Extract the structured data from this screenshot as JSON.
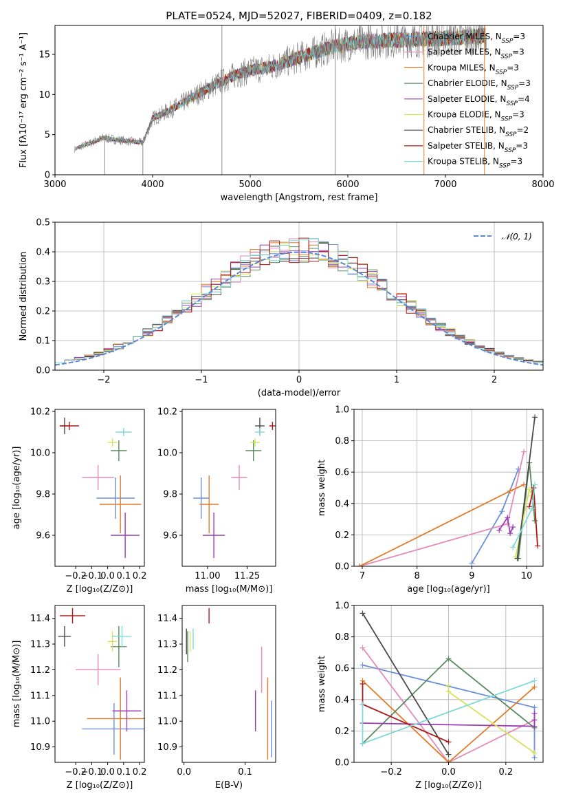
{
  "chart_data": [
    {
      "type": "line",
      "title": "PLATE=0524, MJD=52027, FIBERID=0409, z=0.182",
      "xlabel": "wavelength [Angstrom, rest frame]",
      "ylabel": "Flux [fλ10⁻¹⁷ erg cm⁻² s⁻¹ A⁻¹]",
      "xlim": [
        3000,
        8000
      ],
      "ylim": [
        0,
        18.6
      ],
      "xticks": [
        3000,
        4000,
        5000,
        6000,
        7000,
        8000
      ],
      "yticks": [
        0,
        5,
        10,
        15
      ],
      "legend_position": "right",
      "legend": [
        {
          "name": "Chabrier MILES, N",
          "sub": "SSP",
          "tail": "=3",
          "color": "#6b8fd9"
        },
        {
          "name": "Salpeter MILES, N",
          "sub": "SSP",
          "tail": "=3",
          "color": "#e48ab8"
        },
        {
          "name": "Kroupa MILES, N",
          "sub": "SSP",
          "tail": "=3",
          "color": "#e07b28"
        },
        {
          "name": "Chabrier ELODIE, N",
          "sub": "SSP",
          "tail": "=3",
          "color": "#5a8a60"
        },
        {
          "name": "Salpeter ELODIE, N",
          "sub": "SSP",
          "tail": "=4",
          "color": "#9c3db5"
        },
        {
          "name": "Kroupa ELODIE, N",
          "sub": "SSP",
          "tail": "=3",
          "color": "#d4e35c"
        },
        {
          "name": "Chabrier STELIB, N",
          "sub": "SSP",
          "tail": "=2",
          "color": "#4a4a4a"
        },
        {
          "name": "Salpeter STELIB, N",
          "sub": "SSP",
          "tail": "=3",
          "color": "#b01818"
        },
        {
          "name": "Kroupa STELIB, N",
          "sub": "SSP",
          "tail": "=3",
          "color": "#7fd8d8"
        }
      ],
      "continuum": {
        "x": [
          3200,
          3500,
          3600,
          3900,
          4000,
          4200,
          4500,
          4800,
          5000,
          5200,
          5500,
          5800,
          6000,
          6200,
          6500,
          6800,
          7000,
          7300,
          7420
        ],
        "y": [
          3.2,
          4.6,
          4.4,
          4.0,
          7.0,
          8.2,
          10.3,
          12.2,
          13.0,
          13.4,
          14.6,
          15.8,
          16.3,
          16.6,
          16.8,
          16.9,
          17.0,
          17.2,
          17.3
        ]
      },
      "observed_range": [
        3200,
        7420
      ],
      "observed_color": "#808080"
    },
    {
      "type": "bar",
      "xlabel": "(data-model)/error",
      "ylabel": "Normed distribution",
      "xlim": [
        -2.5,
        2.5
      ],
      "ylim": [
        0,
        0.5
      ],
      "xticks": [
        -2,
        -1,
        0,
        1,
        2
      ],
      "yticks": [
        0.0,
        0.1,
        0.2,
        0.3,
        0.4,
        0.5
      ],
      "grid": true,
      "legend": "𝒩(0, 1)",
      "legend_position": "top-right",
      "normal_color": "#5b86d6",
      "bin_width": 0.1,
      "x_start": -2.5
    },
    {
      "type": "scatter",
      "xlabel": "Z [log₁₀(Z/Z⊙)]",
      "ylabel": "age  [log₁₀(age/yr)]",
      "xlim": [
        -0.33,
        0.23
      ],
      "ylim": [
        9.45,
        10.21
      ],
      "xticks": [
        -0.2,
        -0.1,
        0.0,
        0.1,
        0.2
      ],
      "yticks": [
        9.6,
        9.8,
        10.0,
        10.2
      ],
      "points": [
        {
          "x": 0.05,
          "y": 9.78,
          "xerr": 0.12,
          "yerr": 0.1,
          "color": "#6b8fd9"
        },
        {
          "x": -0.06,
          "y": 9.88,
          "xerr": 0.1,
          "yerr": 0.06,
          "color": "#e48ab8"
        },
        {
          "x": 0.08,
          "y": 9.75,
          "xerr": 0.13,
          "yerr": 0.14,
          "color": "#e07b28"
        },
        {
          "x": 0.07,
          "y": 10.01,
          "xerr": 0.05,
          "yerr": 0.05,
          "color": "#5a8a60"
        },
        {
          "x": 0.11,
          "y": 9.6,
          "xerr": 0.09,
          "yerr": 0.11,
          "color": "#9c3db5"
        },
        {
          "x": 0.03,
          "y": 10.05,
          "xerr": 0.03,
          "yerr": 0.02,
          "color": "#d4e35c"
        },
        {
          "x": -0.27,
          "y": 10.13,
          "xerr": 0.03,
          "yerr": 0.04,
          "color": "#4a4a4a"
        },
        {
          "x": -0.24,
          "y": 10.13,
          "xerr": 0.06,
          "yerr": 0.02,
          "color": "#b01818"
        },
        {
          "x": 0.1,
          "y": 10.1,
          "xerr": 0.05,
          "yerr": 0.02,
          "color": "#7fd8d8"
        }
      ]
    },
    {
      "type": "scatter",
      "xlabel": "mass [log₁₀(M/M⊙)]",
      "xlim": [
        10.84,
        11.43
      ],
      "ylim": [
        9.45,
        10.21
      ],
      "xticks": [
        11.0,
        11.25
      ],
      "tick_labels": [
        "11.00",
        "11.25"
      ],
      "yticks": [
        9.6,
        9.8,
        10.0,
        10.2
      ],
      "points": [
        {
          "x": 10.96,
          "y": 9.78,
          "xerr": 0.05,
          "yerr": 0.1,
          "color": "#6b8fd9"
        },
        {
          "x": 11.2,
          "y": 9.88,
          "xerr": 0.05,
          "yerr": 0.06,
          "color": "#e48ab8"
        },
        {
          "x": 11.01,
          "y": 9.75,
          "xerr": 0.06,
          "yerr": 0.14,
          "color": "#e07b28"
        },
        {
          "x": 11.29,
          "y": 10.01,
          "xerr": 0.05,
          "yerr": 0.05,
          "color": "#5a8a60"
        },
        {
          "x": 11.04,
          "y": 9.6,
          "xerr": 0.07,
          "yerr": 0.11,
          "color": "#9c3db5"
        },
        {
          "x": 11.3,
          "y": 10.05,
          "xerr": 0.03,
          "yerr": 0.02,
          "color": "#d4e35c"
        },
        {
          "x": 11.33,
          "y": 10.13,
          "xerr": 0.03,
          "yerr": 0.04,
          "color": "#4a4a4a"
        },
        {
          "x": 11.41,
          "y": 10.13,
          "xerr": 0.02,
          "yerr": 0.02,
          "color": "#b01818"
        },
        {
          "x": 11.33,
          "y": 10.1,
          "xerr": 0.03,
          "yerr": 0.02,
          "color": "#7fd8d8"
        }
      ]
    },
    {
      "type": "line",
      "xlabel": "age  [log₁₀(age/yr)]",
      "ylabel": "mass weight",
      "xlim": [
        6.85,
        10.3
      ],
      "ylim": [
        0,
        1
      ],
      "xticks": [
        7,
        8,
        9,
        10
      ],
      "yticks": [
        0.0,
        0.2,
        0.4,
        0.6,
        0.8,
        1.0
      ],
      "grid": true,
      "series": [
        {
          "color": "#6b8fd9",
          "x": [
            9.0,
            9.55,
            9.85
          ],
          "y": [
            0.02,
            0.35,
            0.62
          ]
        },
        {
          "color": "#e48ab8",
          "x": [
            6.95,
            9.65,
            9.95
          ],
          "y": [
            0.0,
            0.27,
            0.73
          ]
        },
        {
          "color": "#e07b28",
          "x": [
            6.95,
            9.7,
            9.95
          ],
          "y": [
            0.0,
            0.48,
            0.52
          ]
        },
        {
          "color": "#5a8a60",
          "x": [
            9.85,
            10.05,
            10.15
          ],
          "y": [
            0.05,
            0.66,
            0.29
          ]
        },
        {
          "color": "#9c3db5",
          "x": [
            9.5,
            9.65,
            9.7,
            9.75
          ],
          "y": [
            0.23,
            0.31,
            0.21,
            0.25
          ]
        },
        {
          "color": "#d4e35c",
          "x": [
            9.8,
            10.05,
            10.1
          ],
          "y": [
            0.06,
            0.49,
            0.45
          ]
        },
        {
          "color": "#4a4a4a",
          "x": [
            9.83,
            10.15
          ],
          "y": [
            0.05,
            0.95
          ]
        },
        {
          "color": "#b01818",
          "x": [
            10.05,
            10.13,
            10.2
          ],
          "y": [
            0.38,
            0.5,
            0.13
          ]
        },
        {
          "color": "#7fd8d8",
          "x": [
            9.75,
            10.1,
            10.15
          ],
          "y": [
            0.12,
            0.37,
            0.52
          ]
        }
      ]
    },
    {
      "type": "scatter",
      "xlabel": "Z [log₁₀(Z/Z⊙)]",
      "ylabel": "mass [log₁₀(M/M⊙)]",
      "xlim": [
        -0.33,
        0.23
      ],
      "ylim": [
        10.84,
        11.45
      ],
      "xticks": [
        -0.2,
        -0.1,
        0.0,
        0.1,
        0.2
      ],
      "yticks": [
        10.9,
        11.0,
        11.1,
        11.2,
        11.3,
        11.4
      ],
      "points": [
        {
          "x": 0.04,
          "y": 10.97,
          "xerr": 0.2,
          "yerr": 0.1,
          "color": "#6b8fd9"
        },
        {
          "x": -0.06,
          "y": 11.2,
          "xerr": 0.14,
          "yerr": 0.06,
          "color": "#e48ab8"
        },
        {
          "x": 0.08,
          "y": 11.01,
          "xerr": 0.21,
          "yerr": 0.16,
          "color": "#e07b28"
        },
        {
          "x": 0.07,
          "y": 11.29,
          "xerr": 0.05,
          "yerr": 0.08,
          "color": "#5a8a60"
        },
        {
          "x": 0.12,
          "y": 11.04,
          "xerr": 0.09,
          "yerr": 0.08,
          "color": "#9c3db5"
        },
        {
          "x": 0.03,
          "y": 11.31,
          "xerr": 0.03,
          "yerr": 0.04,
          "color": "#d4e35c"
        },
        {
          "x": -0.27,
          "y": 11.33,
          "xerr": 0.04,
          "yerr": 0.04,
          "color": "#4a4a4a"
        },
        {
          "x": -0.22,
          "y": 11.41,
          "xerr": 0.08,
          "yerr": 0.03,
          "color": "#b01818"
        },
        {
          "x": 0.09,
          "y": 11.33,
          "xerr": 0.06,
          "yerr": 0.04,
          "color": "#7fd8d8"
        }
      ]
    },
    {
      "type": "scatter",
      "xlabel": "E(B-V)",
      "xlim": [
        -0.003,
        0.15
      ],
      "ylim": [
        10.84,
        11.45
      ],
      "xticks": [
        0.0,
        0.1
      ],
      "yticks": [
        10.9,
        11.0,
        11.1,
        11.2,
        11.3,
        11.4
      ],
      "points": [
        {
          "x": 0.143,
          "y": 10.97,
          "yerr": 0.11,
          "color": "#6b8fd9"
        },
        {
          "x": 0.127,
          "y": 11.2,
          "yerr": 0.09,
          "color": "#e48ab8"
        },
        {
          "x": 0.137,
          "y": 11.01,
          "yerr": 0.16,
          "color": "#e07b28"
        },
        {
          "x": 0.006,
          "y": 11.29,
          "yerr": 0.06,
          "color": "#5a8a60"
        },
        {
          "x": 0.117,
          "y": 11.04,
          "yerr": 0.08,
          "color": "#9c3db5"
        },
        {
          "x": 0.01,
          "y": 11.31,
          "yerr": 0.04,
          "color": "#d4e35c"
        },
        {
          "x": 0.004,
          "y": 11.31,
          "yerr": 0.05,
          "color": "#4a4a4a"
        },
        {
          "x": 0.041,
          "y": 11.41,
          "yerr": 0.03,
          "color": "#b01818"
        },
        {
          "x": 0.015,
          "y": 11.32,
          "yerr": 0.04,
          "color": "#7fd8d8"
        }
      ]
    },
    {
      "type": "line",
      "xlabel": "Z [log₁₀(Z/Z⊙)]",
      "ylabel": "mass weight",
      "xlim": [
        -0.33,
        0.33
      ],
      "ylim": [
        0,
        1
      ],
      "xticks": [
        -0.2,
        0.0,
        0.2
      ],
      "yticks": [
        0.0,
        0.2,
        0.4,
        0.6,
        0.8,
        1.0
      ],
      "grid": true,
      "series": [
        {
          "color": "#6b8fd9",
          "x": [
            -0.3,
            0.3,
            0.3
          ],
          "y": [
            0.62,
            0.35,
            0.03
          ]
        },
        {
          "color": "#e48ab8",
          "x": [
            -0.3,
            0.0,
            0.3
          ],
          "y": [
            0.73,
            0.0,
            0.27
          ]
        },
        {
          "color": "#e07b28",
          "x": [
            -0.3,
            0.0,
            0.3
          ],
          "y": [
            0.52,
            0.0,
            0.48
          ]
        },
        {
          "color": "#5a8a60",
          "x": [
            -0.3,
            0.0,
            0.3
          ],
          "y": [
            0.12,
            0.66,
            0.22
          ]
        },
        {
          "color": "#9c3db5",
          "x": [
            -0.3,
            0.3,
            0.3,
            0.3
          ],
          "y": [
            0.25,
            0.23,
            0.27,
            0.31
          ]
        },
        {
          "color": "#d4e35c",
          "x": [
            0.0,
            0.0,
            0.3
          ],
          "y": [
            0.49,
            0.45,
            0.06
          ]
        },
        {
          "color": "#4a4a4a",
          "x": [
            -0.3,
            0.0
          ],
          "y": [
            0.95,
            0.05
          ]
        },
        {
          "color": "#b01818",
          "x": [
            -0.3,
            -0.3,
            0.0
          ],
          "y": [
            0.5,
            0.37,
            0.13
          ]
        },
        {
          "color": "#7fd8d8",
          "x": [
            -0.3,
            -0.3,
            0.3
          ],
          "y": [
            0.37,
            0.12,
            0.52
          ]
        }
      ]
    }
  ]
}
